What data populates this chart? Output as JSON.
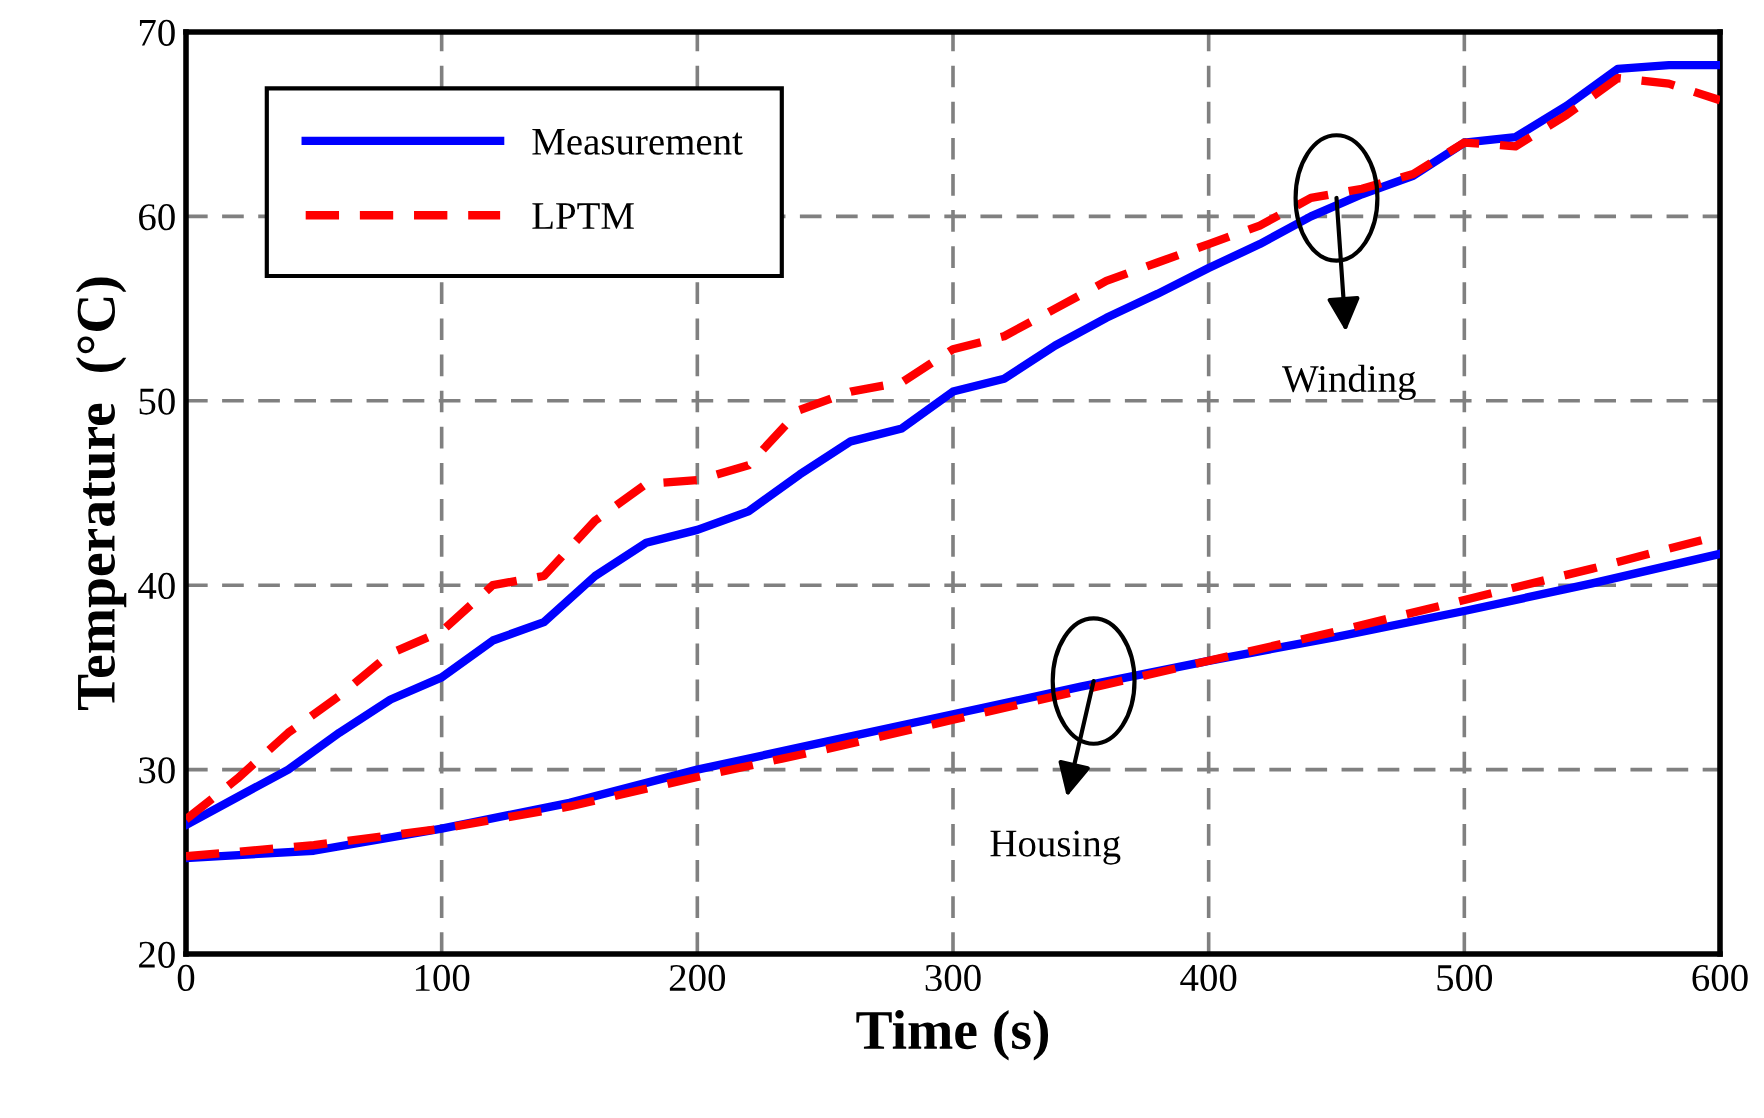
{
  "chart_data": {
    "type": "line",
    "xlabel": "Time (s)",
    "ylabel": "Temperature  (°C)",
    "xlim": [
      0,
      600
    ],
    "xticks": [
      0,
      100,
      200,
      300,
      400,
      500,
      600
    ],
    "ylim": [
      20,
      70
    ],
    "yticks": [
      20,
      30,
      40,
      50,
      60,
      70
    ],
    "grid": true,
    "legend": "top left",
    "series": [
      {
        "name": "Measurement",
        "color": "#0000ff",
        "line_style": "solid",
        "x": [
          0,
          20,
          40,
          60,
          80,
          100,
          120,
          140,
          160,
          180,
          200,
          220,
          240,
          260,
          280,
          300,
          320,
          340,
          360,
          380,
          400,
          420,
          440,
          460,
          480,
          500,
          520,
          540,
          560,
          580,
          600
        ],
        "values": [
          27,
          28.5,
          30,
          32,
          33.8,
          35,
          37,
          38,
          40.5,
          42.3,
          43,
          44,
          46,
          47.8,
          48.5,
          50.5,
          51.2,
          53,
          54.5,
          55.8,
          57.2,
          58.5,
          60,
          61.2,
          62.2,
          64,
          64.3,
          66,
          68,
          68.2,
          68.2
        ]
      },
      {
        "name": "LPTM",
        "color": "#ff0000",
        "line_style": "dashed",
        "x": [
          0,
          20,
          40,
          60,
          80,
          100,
          120,
          140,
          160,
          180,
          200,
          220,
          240,
          260,
          280,
          300,
          320,
          340,
          360,
          380,
          400,
          420,
          440,
          460,
          480,
          500,
          520,
          540,
          560,
          580,
          600
        ],
        "values": [
          27.3,
          29.5,
          32,
          34,
          36.3,
          37.5,
          40,
          40.5,
          43.5,
          45.5,
          45.7,
          46.5,
          49.5,
          50.5,
          51,
          52.8,
          53.5,
          55,
          56.5,
          57.5,
          58.5,
          59.5,
          61,
          61.5,
          62.3,
          64,
          63.8,
          65.5,
          67.5,
          67.2,
          66.3
        ]
      },
      {
        "color": "#0000ff",
        "line_style": "solid",
        "x": [
          0,
          50,
          100,
          150,
          200,
          250,
          300,
          350,
          400,
          450,
          500,
          550,
          600
        ],
        "values": [
          25.2,
          25.6,
          26.8,
          28.2,
          30,
          31.5,
          33,
          34.5,
          35.9,
          37.2,
          38.6,
          40.1,
          41.7
        ]
      },
      {
        "color": "#ff0000",
        "line_style": "dashed",
        "x": [
          0,
          50,
          100,
          150,
          200,
          250,
          300,
          350,
          400,
          450,
          500,
          550,
          600
        ],
        "values": [
          25.3,
          25.9,
          26.8,
          28,
          29.6,
          31.1,
          32.7,
          34.3,
          35.9,
          37.5,
          39.2,
          40.9,
          42.7
        ]
      }
    ],
    "annotations": [
      {
        "text": "Winding",
        "x": 450,
        "y": 61
      },
      {
        "text": "Housing",
        "x": 355,
        "y": 34.8
      }
    ]
  }
}
